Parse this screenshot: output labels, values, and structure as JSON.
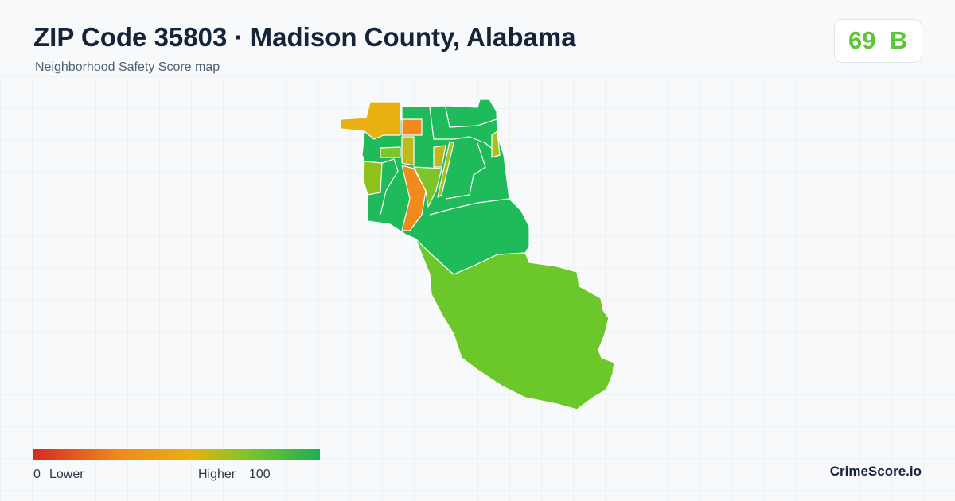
{
  "header": {
    "title": "ZIP Code 35803 · Madison County, Alabama",
    "subtitle": "Neighborhood Safety Score map"
  },
  "score": {
    "value": 69,
    "grade": "B"
  },
  "legend": {
    "min": 0,
    "min_label": "Lower",
    "max_label": "Higher",
    "max": 100
  },
  "brand": "CrimeScore.io"
}
